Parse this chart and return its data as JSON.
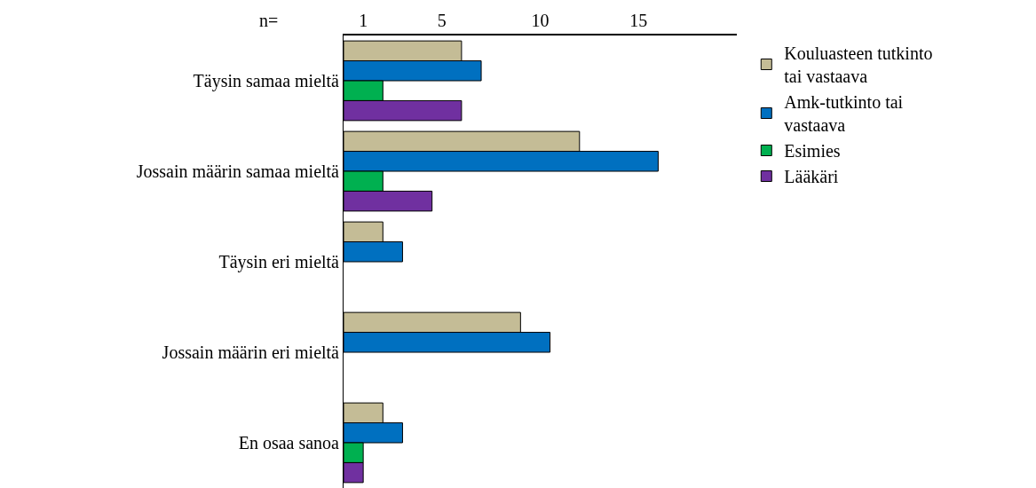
{
  "chart_data": {
    "type": "bar",
    "orientation": "horizontal",
    "categories": [
      "Täysin samaa mieltä",
      "Jossain määrin samaa mieltä",
      "Täysin eri mieltä",
      "Jossain määrin eri mieltä",
      "En osaa sanoa"
    ],
    "series": [
      {
        "name": "Kouluasteen tutkinto tai vastaava",
        "color": "#c4bc96",
        "values": [
          6,
          12,
          2,
          9,
          2
        ]
      },
      {
        "name": "Amk-tutkinto tai vastaava",
        "color": "#0070c0",
        "values": [
          7,
          16,
          3,
          10.5,
          3
        ]
      },
      {
        "name": "Esimies",
        "color": "#00b050",
        "values": [
          2,
          2,
          null,
          null,
          1
        ]
      },
      {
        "name": "Lääkäri",
        "color": "#7030a0",
        "values": [
          6,
          4.5,
          null,
          null,
          1
        ]
      }
    ],
    "xlim": [
      0,
      20
    ],
    "xticks": [
      1,
      5,
      10,
      15
    ],
    "annotations": [
      "n="
    ],
    "grid": false,
    "legend": "top right"
  }
}
